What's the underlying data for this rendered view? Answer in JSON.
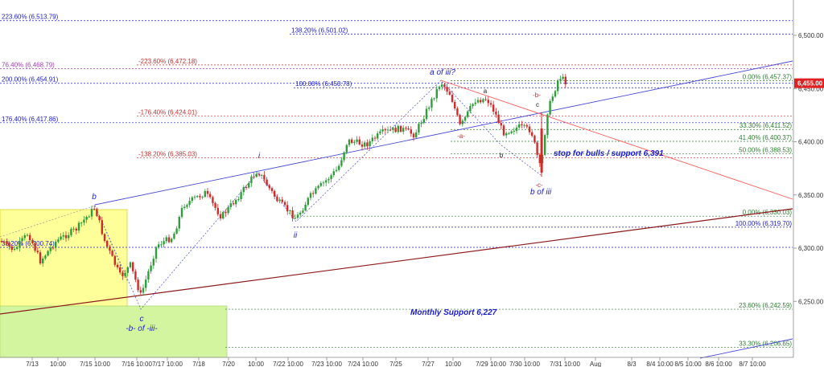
{
  "chart_data": {
    "type": "candlestick",
    "price_axis": {
      "ticks": [
        "6,500.00",
        "6,450.00",
        "6,400.00",
        "6,350.00",
        "6,300.00",
        "6,250.00"
      ],
      "tick_values": [
        6500,
        6450,
        6400,
        6350,
        6300,
        6250
      ],
      "ylim": [
        6195,
        6535
      ]
    },
    "time_axis": {
      "ticks": [
        "7/13",
        "10:00",
        "7/15 10:00",
        "7/16 10:00",
        "7/17 10:00",
        "7/18",
        "7/20",
        "10:00",
        "7/22 10:00",
        "7/23 10:00",
        "7/24 10:00",
        "7/25",
        "7/27",
        "10:00",
        "7/29 10:00",
        "7/30 10:00",
        "7/31 10:00",
        "Aug",
        "8/3",
        "8/4 10:00",
        "8/5 10:00",
        "8/6 10:00",
        "8/7 10:00"
      ]
    },
    "last_price": {
      "label": "6,455.00",
      "value": 6455
    },
    "levels": [
      {
        "label": "223.60% (6,513.79)",
        "value": 6513.79,
        "color": "#1a1ad0",
        "start": 0,
        "side": "left"
      },
      {
        "label": "138.20% (6,501.02)",
        "value": 6501.02,
        "color": "#1a1ad0",
        "start": 360,
        "side": "mid"
      },
      {
        "label": "76.40% (6,468.79)",
        "value": 6468.79,
        "color": "#9b3fb0",
        "start": 0,
        "side": "left"
      },
      {
        "label": "-223.60% (6,472.18)",
        "value": 6472.18,
        "color": "#c03030",
        "start": 170,
        "side": "mid"
      },
      {
        "label": "200.00% (6,454.91)",
        "value": 6454.91,
        "color": "#1a1ad0",
        "start": 0,
        "side": "left"
      },
      {
        "label": "100.00% (6,450.78)",
        "value": 6450.78,
        "color": "#1a1ad0",
        "start": 365,
        "side": "mid"
      },
      {
        "label": "0.00% (6,457.37)",
        "value": 6457.37,
        "color": "#2e7d32",
        "start": 560,
        "side": "right"
      },
      {
        "label": "176.40% (6,417.86)",
        "value": 6417.86,
        "color": "#1a1ad0",
        "start": 0,
        "side": "left"
      },
      {
        "label": "-176.40% (6,424.01)",
        "value": 6424.01,
        "color": "#c03030",
        "start": 170,
        "side": "mid"
      },
      {
        "label": "33.30% (6,411.52)",
        "value": 6411.52,
        "color": "#2e7d32",
        "start": 560,
        "side": "right"
      },
      {
        "label": "41.40% (6,400.37)",
        "value": 6400.37,
        "color": "#2e7d32",
        "start": 560,
        "side": "right"
      },
      {
        "label": "-138.20% (6,385.03)",
        "value": 6385.03,
        "color": "#c03030",
        "start": 170,
        "side": "mid"
      },
      {
        "label": "50.00% (6,388.53)",
        "value": 6388.53,
        "color": "#2e7d32",
        "start": 560,
        "side": "right"
      },
      {
        "label": "0.00% (6,330.03)",
        "value": 6330.03,
        "color": "#2e7d32",
        "start": 365,
        "side": "right"
      },
      {
        "label": "100.00% (6,319.70)",
        "value": 6319.7,
        "color": "#1a1ad0",
        "start": 365,
        "side": "right"
      },
      {
        "label": "38.20% (6,300.74)",
        "value": 6300.74,
        "color": "#1a1ad0",
        "start": 0,
        "side": "left"
      },
      {
        "label": "23.60% (6,242.59)",
        "value": 6242.59,
        "color": "#2e7d32",
        "start": 280,
        "side": "right"
      },
      {
        "label": "33.30% (6,206.65)",
        "value": 6206.65,
        "color": "#2e7d32",
        "start": 280,
        "side": "right"
      }
    ],
    "wave_labels": [
      "b",
      "c",
      "-b- of -iii-",
      "i",
      "ii",
      "a of iii?",
      "a",
      "b",
      "-a-",
      "c",
      "-b-",
      "-c-",
      "b of iii"
    ],
    "annotations": {
      "stop": "stop for bulls / support  6,391",
      "monthly": "Monthly Support 6,227"
    },
    "colors": {
      "up": "#2e9e3a",
      "down": "#d02a2a",
      "channel": "#4a4ad8",
      "trendline": "#8b1a1a",
      "downline": "#ff5a5a",
      "yellow_zone": "#ffff9a",
      "green_zone": "#d4f5a0"
    }
  }
}
